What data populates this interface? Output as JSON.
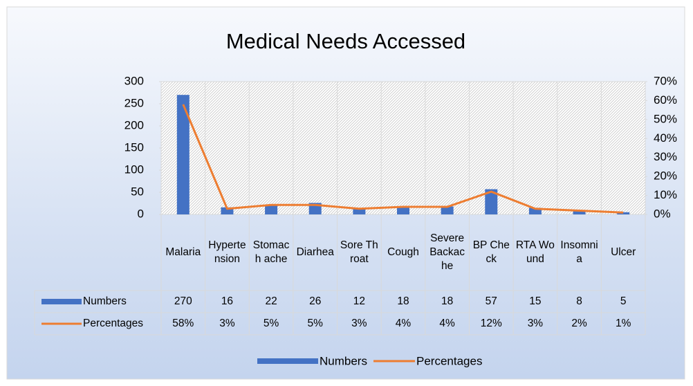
{
  "chart_data": {
    "type": "bar-line",
    "title": "Medical Needs Accessed",
    "categories": [
      "Malaria",
      "Hypertension",
      "Stomach ache",
      "Diarhea",
      "Sore Throat",
      "Cough",
      "Severe Backache",
      "BP Check",
      "RTA Wound",
      "Insomnia",
      "Ulcer"
    ],
    "series": [
      {
        "name": "Numbers",
        "color": "#4472c4",
        "values": [
          270,
          16,
          22,
          26,
          12,
          18,
          18,
          57,
          15,
          8,
          5
        ]
      },
      {
        "name": "Percentages",
        "color": "#ed7d31",
        "axis": "y2",
        "values": [
          58,
          3,
          5,
          5,
          3,
          4,
          4,
          12,
          3,
          2,
          1
        ],
        "value_labels": [
          "58%",
          "3%",
          "5%",
          "5%",
          "3%",
          "4%",
          "4%",
          "12%",
          "3%",
          "2%",
          "1%"
        ]
      }
    ],
    "ylim": [
      0,
      300
    ],
    "yticks": [
      0,
      50,
      100,
      150,
      200,
      250,
      300
    ],
    "y2lim": [
      0,
      70
    ],
    "y2ticks": [
      {
        "value": 0,
        "label": "0%"
      },
      {
        "value": 10,
        "label": "10%"
      },
      {
        "value": 20,
        "label": "20%"
      },
      {
        "value": 30,
        "label": "30%"
      },
      {
        "value": 40,
        "label": "40%"
      },
      {
        "value": 50,
        "label": "50%"
      },
      {
        "value": 60,
        "label": "60%"
      },
      {
        "value": 70,
        "label": "70%"
      }
    ],
    "legend": "bottom"
  }
}
